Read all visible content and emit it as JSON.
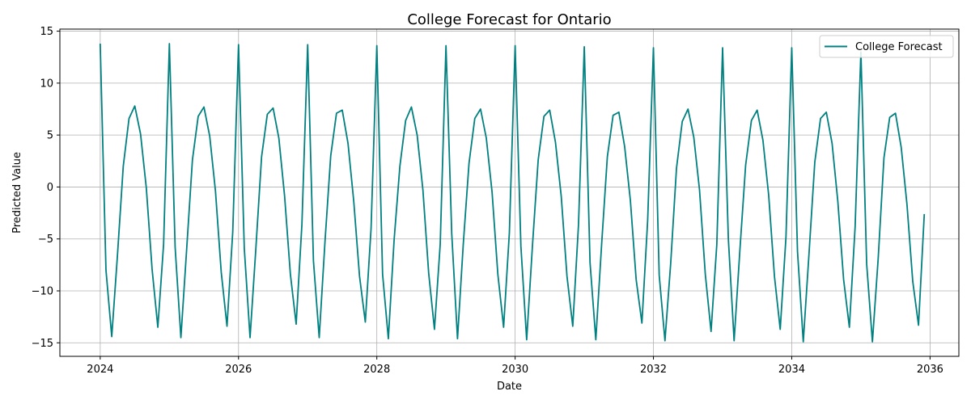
{
  "chart_data": {
    "type": "line",
    "title": "College Forecast for Ontario",
    "xlabel": "Date",
    "ylabel": "Predicted Value",
    "x_axis": "date",
    "xlim": [
      "2023-06-01",
      "2036-06-01"
    ],
    "ylim": [
      -16.3,
      15.2
    ],
    "x_ticks": [
      "2024",
      "2026",
      "2028",
      "2030",
      "2032",
      "2034",
      "2036"
    ],
    "y_ticks": [
      15,
      10,
      5,
      0,
      -5,
      -10,
      -15
    ],
    "y_tick_labels": [
      "15",
      "10",
      "5",
      "0",
      "−5",
      "−10",
      "−15"
    ],
    "grid": true,
    "legend_position": "top-right",
    "series": [
      {
        "name": "College Forecast",
        "color": "#008080",
        "x": [
          "2024-01",
          "2024-02",
          "2024-03",
          "2024-04",
          "2024-05",
          "2024-06",
          "2024-07",
          "2024-08",
          "2024-09",
          "2024-10",
          "2024-11",
          "2024-12",
          "2025-01",
          "2025-02",
          "2025-03",
          "2025-04",
          "2025-05",
          "2025-06",
          "2025-07",
          "2025-08",
          "2025-09",
          "2025-10",
          "2025-11",
          "2025-12",
          "2026-01",
          "2026-02",
          "2026-03",
          "2026-04",
          "2026-05",
          "2026-06",
          "2026-07",
          "2026-08",
          "2026-09",
          "2026-10",
          "2026-11",
          "2026-12",
          "2027-01",
          "2027-02",
          "2027-03",
          "2027-04",
          "2027-05",
          "2027-06",
          "2027-07",
          "2027-08",
          "2027-09",
          "2027-10",
          "2027-11",
          "2027-12",
          "2028-01",
          "2028-02",
          "2028-03",
          "2028-04",
          "2028-05",
          "2028-06",
          "2028-07",
          "2028-08",
          "2028-09",
          "2028-10",
          "2028-11",
          "2028-12",
          "2029-01",
          "2029-02",
          "2029-03",
          "2029-04",
          "2029-05",
          "2029-06",
          "2029-07",
          "2029-08",
          "2029-09",
          "2029-10",
          "2029-11",
          "2029-12",
          "2030-01",
          "2030-02",
          "2030-03",
          "2030-04",
          "2030-05",
          "2030-06",
          "2030-07",
          "2030-08",
          "2030-09",
          "2030-10",
          "2030-11",
          "2030-12",
          "2031-01",
          "2031-02",
          "2031-03",
          "2031-04",
          "2031-05",
          "2031-06",
          "2031-07",
          "2031-08",
          "2031-09",
          "2031-10",
          "2031-11",
          "2031-12",
          "2032-01",
          "2032-02",
          "2032-03",
          "2032-04",
          "2032-05",
          "2032-06",
          "2032-07",
          "2032-08",
          "2032-09",
          "2032-10",
          "2032-11",
          "2032-12",
          "2033-01",
          "2033-02",
          "2033-03",
          "2033-04",
          "2033-05",
          "2033-06",
          "2033-07",
          "2033-08",
          "2033-09",
          "2033-10",
          "2033-11",
          "2033-12",
          "2034-01",
          "2034-02",
          "2034-03",
          "2034-04",
          "2034-05",
          "2034-06",
          "2034-07",
          "2034-08",
          "2034-09",
          "2034-10",
          "2034-11",
          "2034-12",
          "2035-01",
          "2035-02",
          "2035-03",
          "2035-04",
          "2035-05",
          "2035-06",
          "2035-07",
          "2035-08",
          "2035-09",
          "2035-10",
          "2035-11",
          "2035-12"
        ],
        "values": [
          13.8,
          -8.0,
          -14.4,
          -6.5,
          2.0,
          6.6,
          7.8,
          5.1,
          -0.1,
          -7.9,
          -13.5,
          -5.5,
          13.8,
          -5.8,
          -14.5,
          -6.0,
          2.6,
          6.8,
          7.7,
          4.9,
          -0.4,
          -8.2,
          -13.4,
          -4.3,
          13.7,
          -5.9,
          -14.5,
          -6.0,
          2.9,
          7.0,
          7.6,
          4.7,
          -0.9,
          -8.4,
          -13.2,
          -3.6,
          13.7,
          -7.1,
          -14.5,
          -5.3,
          3.0,
          7.1,
          7.4,
          4.2,
          -1.4,
          -8.6,
          -13.0,
          -4.0,
          13.6,
          -8.4,
          -14.6,
          -5.1,
          2.0,
          6.4,
          7.7,
          5.0,
          -0.3,
          -8.3,
          -13.7,
          -5.5,
          13.6,
          -4.5,
          -14.6,
          -5.5,
          2.3,
          6.6,
          7.5,
          4.7,
          -0.5,
          -8.4,
          -13.5,
          -4.4,
          13.6,
          -5.7,
          -14.7,
          -5.7,
          2.6,
          6.8,
          7.4,
          4.3,
          -0.9,
          -8.6,
          -13.4,
          -3.6,
          13.5,
          -7.3,
          -14.7,
          -5.6,
          2.9,
          6.9,
          7.2,
          3.9,
          -1.3,
          -8.9,
          -13.1,
          -3.2,
          13.4,
          -8.5,
          -14.8,
          -7.3,
          1.8,
          6.3,
          7.5,
          4.8,
          -0.3,
          -8.4,
          -13.9,
          -5.5,
          13.4,
          -5.0,
          -14.8,
          -6.1,
          2.1,
          6.4,
          7.4,
          4.5,
          -0.8,
          -8.6,
          -13.7,
          -4.8,
          13.4,
          -6.2,
          -14.9,
          -6.4,
          2.4,
          6.6,
          7.2,
          4.2,
          -1.4,
          -8.9,
          -13.5,
          -3.8,
          13.0,
          -7.4,
          -14.9,
          -6.9,
          2.8,
          6.7,
          7.1,
          3.8,
          -1.7,
          -9.1,
          -13.3,
          -2.6
        ]
      }
    ]
  }
}
